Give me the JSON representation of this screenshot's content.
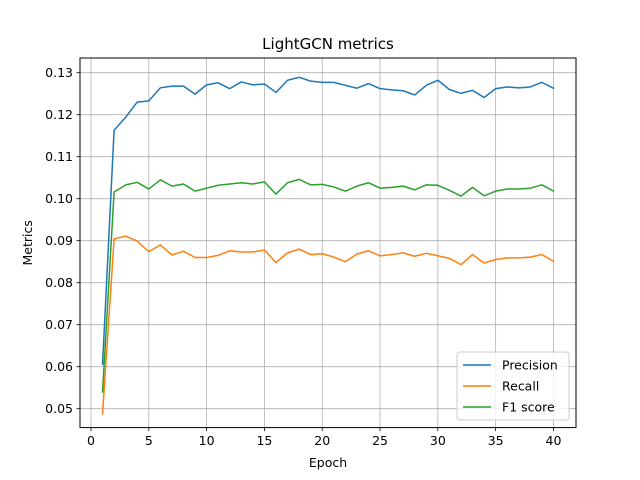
{
  "chart_data": {
    "type": "line",
    "title": "LightGCN metrics",
    "xlabel": "Epoch",
    "ylabel": "Metrics",
    "xlim": [
      -0.95,
      41.95
    ],
    "ylim": [
      0.0455,
      0.1335
    ],
    "xticks": [
      0,
      5,
      10,
      15,
      20,
      25,
      30,
      35,
      40
    ],
    "yticks": [
      0.05,
      0.06,
      0.07,
      0.08,
      0.09,
      0.1,
      0.11,
      0.12,
      0.13
    ],
    "xtick_labels": [
      "0",
      "5",
      "10",
      "15",
      "20",
      "25",
      "30",
      "35",
      "40"
    ],
    "ytick_labels": [
      "0.05",
      "0.06",
      "0.07",
      "0.08",
      "0.09",
      "0.10",
      "0.11",
      "0.12",
      "0.13"
    ],
    "grid": true,
    "legend_position": "bottom-right",
    "x": [
      1,
      2,
      3,
      4,
      5,
      6,
      7,
      8,
      9,
      10,
      11,
      12,
      13,
      14,
      15,
      16,
      17,
      18,
      19,
      20,
      21,
      22,
      23,
      24,
      25,
      26,
      27,
      28,
      29,
      30,
      31,
      32,
      33,
      34,
      35,
      36,
      37,
      38,
      39,
      40
    ],
    "series": [
      {
        "name": "Precision",
        "color": "#1f77b4",
        "values": [
          0.0606,
          0.1163,
          0.1194,
          0.123,
          0.1233,
          0.1264,
          0.1268,
          0.1268,
          0.1249,
          0.1271,
          0.1276,
          0.1262,
          0.1278,
          0.1271,
          0.1273,
          0.1253,
          0.1282,
          0.1289,
          0.128,
          0.1277,
          0.1277,
          0.127,
          0.1263,
          0.1274,
          0.1262,
          0.1259,
          0.1257,
          0.1247,
          0.127,
          0.1282,
          0.126,
          0.1251,
          0.1258,
          0.1241,
          0.1262,
          0.1266,
          0.1264,
          0.1266,
          0.1277,
          0.1263
        ]
      },
      {
        "name": "Recall",
        "color": "#ff7f0e",
        "values": [
          0.0488,
          0.0904,
          0.0911,
          0.0899,
          0.0874,
          0.089,
          0.0866,
          0.0875,
          0.086,
          0.086,
          0.0865,
          0.0876,
          0.0873,
          0.0873,
          0.0878,
          0.0848,
          0.0871,
          0.088,
          0.0867,
          0.0869,
          0.0861,
          0.085,
          0.0868,
          0.0876,
          0.0864,
          0.0867,
          0.0871,
          0.0863,
          0.087,
          0.0864,
          0.0858,
          0.0843,
          0.0867,
          0.0847,
          0.0855,
          0.0859,
          0.0859,
          0.0861,
          0.0867,
          0.0851
        ]
      },
      {
        "name": "F1 score",
        "color": "#2ca02c",
        "values": [
          0.054,
          0.1016,
          0.1033,
          0.1039,
          0.1023,
          0.1045,
          0.103,
          0.1035,
          0.1018,
          0.1025,
          0.1032,
          0.1035,
          0.1038,
          0.1035,
          0.104,
          0.1011,
          0.1038,
          0.1046,
          0.1033,
          0.1034,
          0.1028,
          0.1018,
          0.103,
          0.1038,
          0.1025,
          0.1027,
          0.103,
          0.1021,
          0.1033,
          0.1032,
          0.102,
          0.1006,
          0.1027,
          0.1007,
          0.1018,
          0.1023,
          0.1023,
          0.1025,
          0.1033,
          0.1018
        ]
      }
    ]
  }
}
